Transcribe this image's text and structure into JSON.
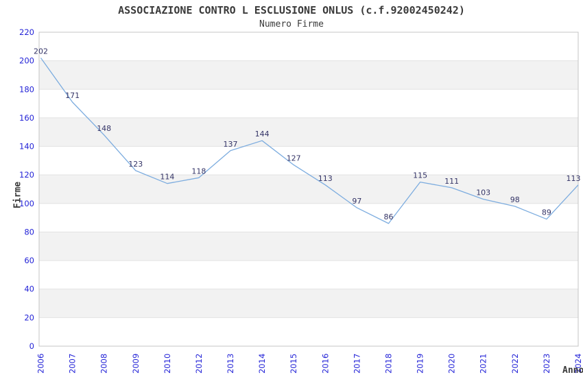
{
  "chart_data": {
    "type": "line",
    "title": "ASSOCIAZIONE CONTRO L ESCLUSIONE ONLUS (c.f.92002450242)",
    "subtitle": "Numero Firme",
    "xlabel": "Anno",
    "ylabel": "Firme",
    "categories": [
      "2006",
      "2007",
      "2008",
      "2009",
      "2010",
      "2012",
      "2013",
      "2014",
      "2015",
      "2016",
      "2017",
      "2018",
      "2019",
      "2020",
      "2021",
      "2022",
      "2023",
      "2024"
    ],
    "values": [
      202,
      171,
      148,
      123,
      114,
      118,
      137,
      144,
      127,
      113,
      97,
      86,
      115,
      111,
      103,
      98,
      89,
      113
    ],
    "ylim": [
      0,
      220
    ],
    "ytick_step": 20,
    "yticks": [
      0,
      20,
      40,
      60,
      80,
      100,
      120,
      140,
      160,
      180,
      200,
      220
    ],
    "grid": true,
    "legend_position": "none",
    "point_labels_shown": true,
    "colors": {
      "line": "#7cacdf",
      "tick_labels": "#2323d7",
      "value_labels": "#333366",
      "axis_titles": "#3a3a3a",
      "band_fill": "#f2f2f2",
      "grid_line": "#e2e2e2",
      "plot_border": "#c4c4c4",
      "background": "#ffffff"
    }
  }
}
